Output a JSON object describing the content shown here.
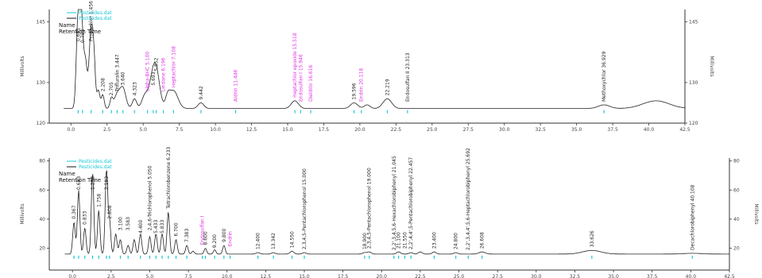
{
  "chart_data": [
    {
      "type": "line",
      "x_unit": "minutes",
      "ylabel": "Millivolts",
      "xlim": [
        -1.5,
        42.5
      ],
      "ylim": [
        120,
        148
      ],
      "x_ticks": [
        "0.0",
        "2.5",
        "5.0",
        "7.5",
        "10.0",
        "12.5",
        "15.0",
        "17.5",
        "20.0",
        "22.5",
        "25.0",
        "27.5",
        "30.0",
        "32.5",
        "35.0",
        "37.5",
        "40.0",
        "42.5"
      ],
      "y_ticks_left": [
        "145",
        "130",
        "120"
      ],
      "y_ticks_left_values": [
        145,
        130,
        120
      ],
      "y_ticks_right": [
        "145",
        "130",
        "120"
      ],
      "y_ticks_right_values": [
        145,
        130,
        120
      ],
      "legend": {
        "items": [
          "Pesticides.dat",
          "Pesticides.dat"
        ],
        "fields": [
          "Name",
          "Retention Time"
        ]
      },
      "baseline": 123.6,
      "series": [
        {
          "x": [
            -0.5,
            0.5,
            0.7,
            0.8,
            1.0,
            1.4,
            1.6,
            1.9,
            2.2,
            2.8,
            3.2,
            3.6,
            4.4,
            5.1,
            5.6,
            5.9,
            6.7,
            7.1,
            9.0,
            15.5,
            19.6,
            20.5,
            21.9,
            36.9,
            40.5
          ],
          "y": [
            123.6,
            147,
            139,
            131,
            135,
            143,
            132,
            128,
            127,
            126,
            127,
            128.5,
            126,
            126.5,
            128.5,
            132,
            126,
            128,
            125,
            125.5,
            125,
            124.5,
            126,
            124.5,
            125.5
          ],
          "w": [
            0.1,
            0.12,
            0.1,
            0.1,
            0.12,
            0.14,
            0.1,
            0.1,
            0.1,
            0.1,
            0.2,
            0.2,
            0.15,
            0.2,
            0.25,
            0.25,
            0.15,
            0.3,
            0.2,
            0.25,
            0.25,
            0.2,
            0.3,
            0.4,
            0.9
          ]
        }
      ],
      "peaks": [
        {
          "x": 0.5,
          "y": 147,
          "label": "0.661",
          "magenta": false
        },
        {
          "x": 0.8,
          "y": 139,
          "label": "0.783",
          "magenta": false
        },
        {
          "x": 1.4,
          "y": 143,
          "label": "Propachlor 1.456",
          "magenta": false
        },
        {
          "x": 2.2,
          "y": 127,
          "label": "2.208",
          "magenta": false
        },
        {
          "x": 2.8,
          "y": 126,
          "label": "2.705",
          "magenta": false
        },
        {
          "x": 3.2,
          "y": 127,
          "label": "Trifluralin 3.447",
          "magenta": false
        },
        {
          "x": 3.6,
          "y": 128.5,
          "label": "3.640",
          "magenta": false
        },
        {
          "x": 4.4,
          "y": 126,
          "label": "4.323",
          "magenta": false
        },
        {
          "x": 5.3,
          "y": 127,
          "label": "alpha-BHC 5.100",
          "magenta": true
        },
        {
          "x": 5.7,
          "y": 128.5,
          "label": "5.693",
          "magenta": false
        },
        {
          "x": 5.9,
          "y": 132,
          "label": "5.852",
          "magenta": false
        },
        {
          "x": 6.4,
          "y": 127,
          "label": "Lindane 6.196",
          "magenta": true
        },
        {
          "x": 7.1,
          "y": 128,
          "label": "Heptachlor 7.108",
          "magenta": true
        },
        {
          "x": 9.0,
          "y": 125,
          "label": "9.442",
          "magenta": false
        },
        {
          "x": 11.4,
          "y": 124.5,
          "label": "Aldrin 11.446",
          "magenta": true
        },
        {
          "x": 15.5,
          "y": 125.5,
          "label": "Heptachlor epoxide 15.518",
          "magenta": true
        },
        {
          "x": 15.9,
          "y": 124.5,
          "label": "Endosulfan I 15.946",
          "magenta": true
        },
        {
          "x": 16.6,
          "y": 124.5,
          "label": "Dieldrin 16.616",
          "magenta": true
        },
        {
          "x": 19.6,
          "y": 125,
          "label": "19.596",
          "magenta": false
        },
        {
          "x": 20.1,
          "y": 124.5,
          "label": "Endrin 20.118",
          "magenta": true
        },
        {
          "x": 21.9,
          "y": 126,
          "label": "22.219",
          "magenta": false
        },
        {
          "x": 23.3,
          "y": 124.5,
          "label": "Endosulfan II 23.313",
          "magenta": false
        },
        {
          "x": 36.9,
          "y": 124.5,
          "label": "Methoxychlor 36.929",
          "magenta": false
        }
      ]
    },
    {
      "type": "line",
      "x_unit": "minutes",
      "ylabel": "Millivolts",
      "xlim": [
        -1.5,
        42.5
      ],
      "ylim": [
        5,
        82
      ],
      "x_ticks": [
        "0.0",
        "2.5",
        "5.0",
        "7.5",
        "10.0",
        "12.5",
        "15.0",
        "17.5",
        "20.0",
        "22.5",
        "25.0",
        "27.5",
        "30.0",
        "32.5",
        "35.0",
        "37.5",
        "40.0",
        "42.5"
      ],
      "y_ticks_left": [
        "80",
        "60",
        "40",
        "20"
      ],
      "y_ticks_left_values": [
        80,
        60,
        40,
        20
      ],
      "y_ticks_right": [
        "80",
        "60",
        "40",
        "20"
      ],
      "y_ticks_right_values": [
        80,
        60,
        40,
        20
      ],
      "legend": {
        "items": [
          "Pesticides.dat",
          "Pesticides.dat"
        ],
        "fields": [
          "Name",
          "Retention Time"
        ]
      },
      "baseline": 16,
      "series": [
        {
          "x": [
            0.1,
            0.4,
            0.8,
            1.3,
            1.7,
            2.2,
            2.4,
            2.8,
            3.1,
            3.6,
            4.0,
            4.4,
            5.0,
            5.4,
            5.8,
            6.2,
            6.7,
            7.4,
            7.8,
            8.6,
            9.2,
            9.8,
            12.0,
            13.0,
            14.2,
            15.0,
            18.9,
            19.2,
            21.1,
            21.9,
            22.5,
            23.4,
            24.8,
            26.5,
            33.6,
            40.1
          ],
          "y": [
            38,
            60,
            34,
            72,
            46,
            74,
            38,
            30,
            26,
            22,
            26,
            30,
            28,
            30,
            30,
            45,
            26,
            22,
            18,
            20,
            19,
            22,
            17,
            17,
            18,
            17,
            17,
            17.5,
            17.5,
            17,
            17.5,
            17.5,
            17,
            17.5,
            18.5,
            16.5
          ],
          "w": [
            0.08,
            0.08,
            0.08,
            0.08,
            0.08,
            0.08,
            0.08,
            0.08,
            0.08,
            0.08,
            0.08,
            0.08,
            0.08,
            0.08,
            0.08,
            0.08,
            0.08,
            0.08,
            0.08,
            0.08,
            0.08,
            0.08,
            0.12,
            0.12,
            0.12,
            0.12,
            0.12,
            0.12,
            0.12,
            0.12,
            0.12,
            0.12,
            0.12,
            0.2,
            0.6,
            0.6
          ]
        }
      ],
      "peaks": [
        {
          "x": 0.1,
          "y": 38,
          "label": "0.367",
          "magenta": false
        },
        {
          "x": 0.4,
          "y": 60,
          "label": "0.683",
          "magenta": false
        },
        {
          "x": 0.8,
          "y": 34,
          "label": "0.833",
          "magenta": false
        },
        {
          "x": 1.3,
          "y": 72,
          "label": "1.250",
          "magenta": false
        },
        {
          "x": 1.7,
          "y": 46,
          "label": "1.758",
          "magenta": false
        },
        {
          "x": 2.2,
          "y": 74,
          "label": "2.183",
          "magenta": false
        },
        {
          "x": 2.4,
          "y": 38,
          "label": "2.808",
          "magenta": false
        },
        {
          "x": 3.1,
          "y": 30,
          "label": "3.100",
          "magenta": false
        },
        {
          "x": 3.6,
          "y": 30,
          "label": "3.583",
          "magenta": false
        },
        {
          "x": 4.4,
          "y": 28,
          "label": "4.400",
          "magenta": false
        },
        {
          "x": 5.0,
          "y": 30,
          "label": "2,4,6-Trichlorophenol 5.050",
          "magenta": false
        },
        {
          "x": 5.4,
          "y": 28,
          "label": "5.433",
          "magenta": false
        },
        {
          "x": 5.8,
          "y": 28,
          "label": "5.833",
          "magenta": false
        },
        {
          "x": 6.2,
          "y": 45,
          "label": "Tetrachlorobenzene 6.233",
          "magenta": false
        },
        {
          "x": 6.7,
          "y": 26,
          "label": "6.700",
          "magenta": false
        },
        {
          "x": 7.4,
          "y": 22,
          "label": "7.383",
          "magenta": false
        },
        {
          "x": 8.4,
          "y": 20,
          "label": "Endosulfan I",
          "magenta": true
        },
        {
          "x": 8.6,
          "y": 20,
          "label": "8.600",
          "magenta": false
        },
        {
          "x": 9.2,
          "y": 18,
          "label": "9.200",
          "magenta": false
        },
        {
          "x": 9.8,
          "y": 22,
          "label": "9.800",
          "magenta": false
        },
        {
          "x": 10.2,
          "y": 19,
          "label": "Endrin",
          "magenta": true
        },
        {
          "x": 12.0,
          "y": 17,
          "label": "12.400",
          "magenta": false
        },
        {
          "x": 13.0,
          "y": 17,
          "label": "13.342",
          "magenta": false
        },
        {
          "x": 14.2,
          "y": 18,
          "label": "14.550",
          "magenta": false
        },
        {
          "x": 15.0,
          "y": 17,
          "label": "2,3,4,5-Pentachlorophenol 15.000",
          "magenta": false
        },
        {
          "x": 18.9,
          "y": 17,
          "label": "18.900",
          "magenta": false
        },
        {
          "x": 19.2,
          "y": 17.5,
          "label": "2,3,4,5-Pentachlorophenol 19.000",
          "magenta": false
        },
        {
          "x": 20.8,
          "y": 16.5,
          "label": "2,2',3,4,5,6-Hexachlorobiphenyl 21.045",
          "magenta": false
        },
        {
          "x": 21.1,
          "y": 17.5,
          "label": "21.100",
          "magenta": false
        },
        {
          "x": 21.5,
          "y": 17.5,
          "label": "21.550",
          "magenta": false
        },
        {
          "x": 21.9,
          "y": 17,
          "label": "2,2',4,4',5-Pentachlorobiphenyl 22.457",
          "magenta": false
        },
        {
          "x": 23.4,
          "y": 17.5,
          "label": "23.400",
          "magenta": false
        },
        {
          "x": 24.8,
          "y": 17,
          "label": "24.800",
          "magenta": false
        },
        {
          "x": 25.6,
          "y": 16.5,
          "label": "2,2',3,4,4',5,6-Heptachlorobiphenyl 25.692",
          "magenta": false
        },
        {
          "x": 26.5,
          "y": 17.5,
          "label": "26.608",
          "magenta": false
        },
        {
          "x": 33.6,
          "y": 18.5,
          "label": "33.626",
          "magenta": false
        },
        {
          "x": 40.1,
          "y": 16.5,
          "label": "Decachlorobiphenyl 40.108",
          "magenta": false
        }
      ]
    }
  ]
}
